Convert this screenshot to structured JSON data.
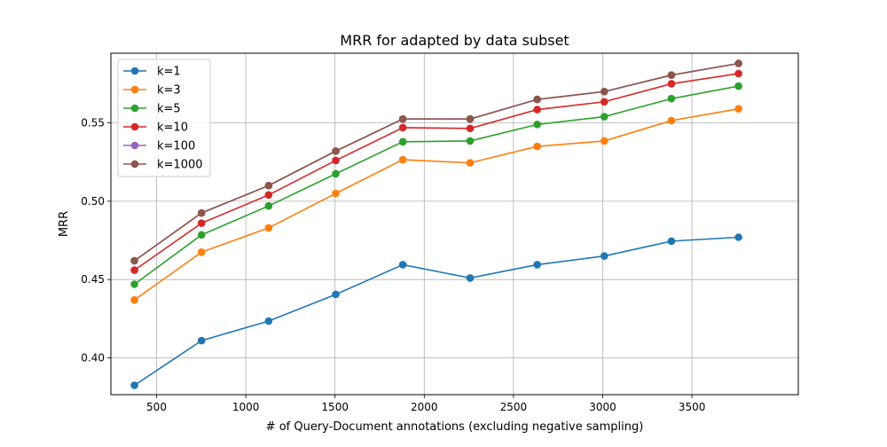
{
  "chart_data": {
    "type": "line",
    "title": "MRR for adapted by data subset",
    "xlabel": "# of Query-Document annotations (excluding negative sampling)",
    "ylabel": "MRR",
    "xlim": [
      244,
      4096
    ],
    "ylim": [
      0.3765,
      0.5945
    ],
    "xticks": [
      500,
      1000,
      1500,
      2000,
      2500,
      3000,
      3500
    ],
    "yticks": [
      0.4,
      0.45,
      0.5,
      0.55
    ],
    "xtick_labels": [
      "500",
      "1000",
      "1500",
      "2000",
      "2500",
      "3000",
      "3500"
    ],
    "ytick_labels": [
      "0.40",
      "0.45",
      "0.50",
      "0.55"
    ],
    "grid": true,
    "legend_position": "top-left",
    "x": [
      376,
      752,
      1128,
      1504,
      1880,
      2257,
      2633,
      3009,
      3385,
      3761
    ],
    "series": [
      {
        "name": "k=1",
        "color": "#1f77b4",
        "values": [
          0.3825,
          0.411,
          0.4235,
          0.4405,
          0.4595,
          0.451,
          0.4595,
          0.465,
          0.4745,
          0.477
        ]
      },
      {
        "name": "k=3",
        "color": "#ff7f0e",
        "values": [
          0.437,
          0.4675,
          0.483,
          0.505,
          0.5265,
          0.5245,
          0.535,
          0.5385,
          0.5515,
          0.559
        ]
      },
      {
        "name": "k=5",
        "color": "#2ca02c",
        "values": [
          0.447,
          0.4785,
          0.497,
          0.5175,
          0.538,
          0.5385,
          0.549,
          0.554,
          0.5655,
          0.5735
        ]
      },
      {
        "name": "k=10",
        "color": "#d62728",
        "values": [
          0.456,
          0.486,
          0.504,
          0.526,
          0.547,
          0.5465,
          0.5585,
          0.5635,
          0.575,
          0.5815
        ]
      },
      {
        "name": "k=100",
        "color": "#9467bd",
        "values": [
          0.462,
          0.4925,
          0.51,
          0.532,
          0.5525,
          0.5525,
          0.565,
          0.57,
          0.5805,
          0.588
        ]
      },
      {
        "name": "k=1000",
        "color": "#8c564b",
        "values": [
          0.462,
          0.4925,
          0.51,
          0.532,
          0.5525,
          0.5525,
          0.565,
          0.57,
          0.5805,
          0.588
        ]
      }
    ]
  }
}
